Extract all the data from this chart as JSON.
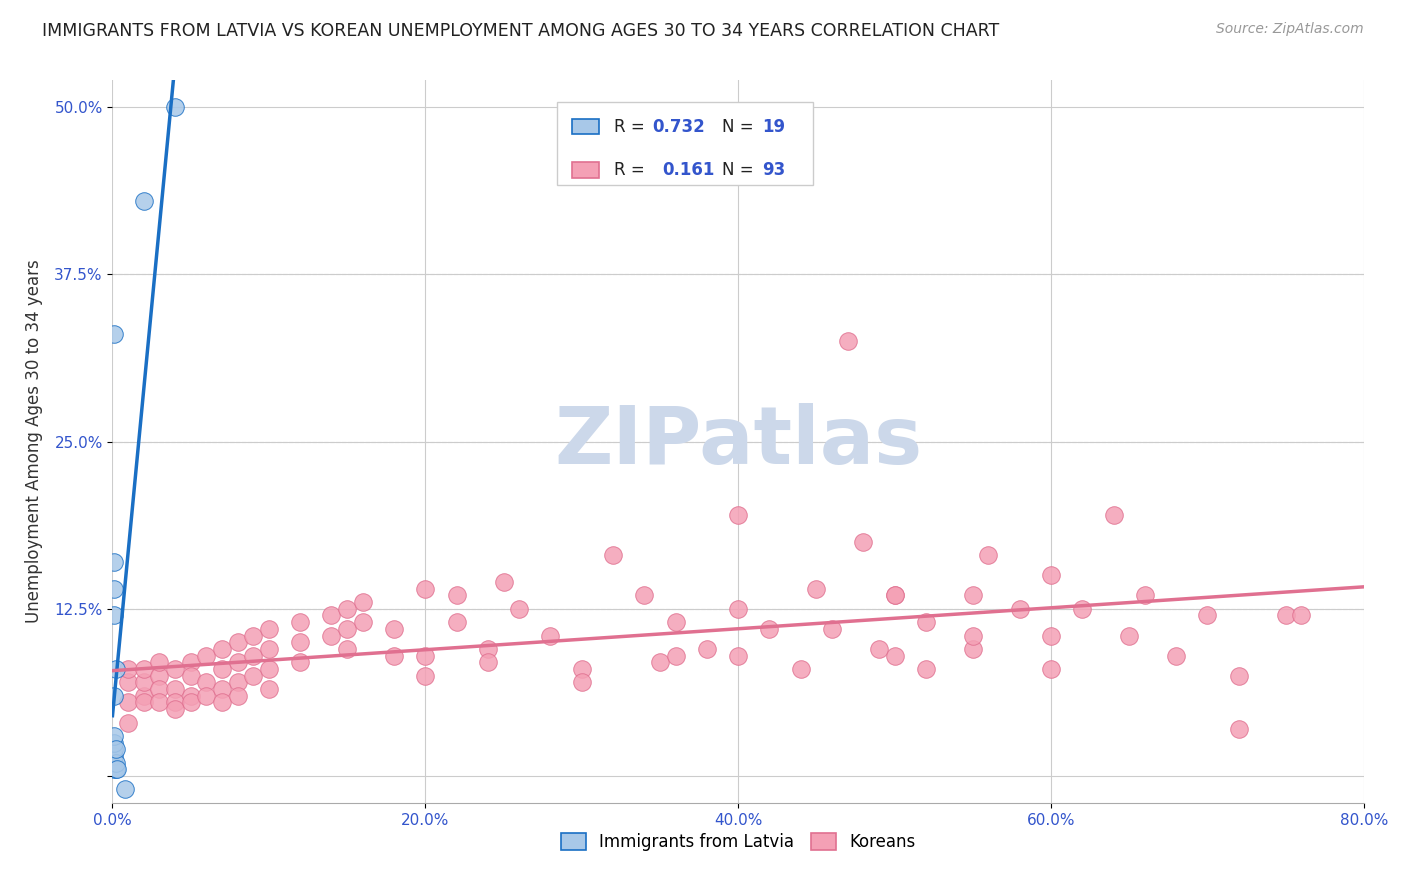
{
  "title": "IMMIGRANTS FROM LATVIA VS KOREAN UNEMPLOYMENT AMONG AGES 30 TO 34 YEARS CORRELATION CHART",
  "source": "Source: ZipAtlas.com",
  "ylabel": "Unemployment Among Ages 30 to 34 years",
  "xlim": [
    0,
    0.8
  ],
  "ylim": [
    -0.02,
    0.52
  ],
  "xtick_vals": [
    0.0,
    0.2,
    0.4,
    0.6,
    0.8
  ],
  "xtick_labels": [
    "0.0%",
    "20.0%",
    "40.0%",
    "60.0%",
    "80.0%"
  ],
  "ytick_vals": [
    0.0,
    0.125,
    0.25,
    0.375,
    0.5
  ],
  "ytick_labels": [
    "",
    "12.5%",
    "25.0%",
    "37.5%",
    "50.0%"
  ],
  "color_latvia": "#a8c8e8",
  "color_korean": "#f4a0b5",
  "color_line_latvia": "#1a6fc4",
  "color_line_korean": "#e07090",
  "color_tick_label": "#3355cc",
  "background_color": "#ffffff",
  "watermark_color": "#ccd8ea",
  "latvia_points": [
    [
      0.001,
      0.005
    ],
    [
      0.001,
      0.01
    ],
    [
      0.001,
      0.015
    ],
    [
      0.001,
      0.02
    ],
    [
      0.001,
      0.025
    ],
    [
      0.001,
      0.03
    ],
    [
      0.002,
      0.005
    ],
    [
      0.002,
      0.01
    ],
    [
      0.002,
      0.02
    ],
    [
      0.003,
      0.005
    ],
    [
      0.008,
      -0.01
    ],
    [
      0.001,
      0.12
    ],
    [
      0.001,
      0.33
    ],
    [
      0.02,
      0.43
    ],
    [
      0.04,
      0.5
    ],
    [
      0.001,
      0.14
    ],
    [
      0.001,
      0.16
    ],
    [
      0.002,
      0.08
    ],
    [
      0.001,
      0.06
    ]
  ],
  "korean_points": [
    [
      0.01,
      0.055
    ],
    [
      0.01,
      0.07
    ],
    [
      0.01,
      0.08
    ],
    [
      0.01,
      0.04
    ],
    [
      0.02,
      0.06
    ],
    [
      0.02,
      0.07
    ],
    [
      0.02,
      0.08
    ],
    [
      0.02,
      0.055
    ],
    [
      0.03,
      0.075
    ],
    [
      0.03,
      0.085
    ],
    [
      0.03,
      0.065
    ],
    [
      0.03,
      0.055
    ],
    [
      0.04,
      0.08
    ],
    [
      0.04,
      0.065
    ],
    [
      0.04,
      0.055
    ],
    [
      0.04,
      0.05
    ],
    [
      0.05,
      0.085
    ],
    [
      0.05,
      0.075
    ],
    [
      0.05,
      0.06
    ],
    [
      0.05,
      0.055
    ],
    [
      0.06,
      0.09
    ],
    [
      0.06,
      0.07
    ],
    [
      0.06,
      0.06
    ],
    [
      0.07,
      0.095
    ],
    [
      0.07,
      0.08
    ],
    [
      0.07,
      0.065
    ],
    [
      0.07,
      0.055
    ],
    [
      0.08,
      0.1
    ],
    [
      0.08,
      0.085
    ],
    [
      0.08,
      0.07
    ],
    [
      0.08,
      0.06
    ],
    [
      0.09,
      0.105
    ],
    [
      0.09,
      0.09
    ],
    [
      0.09,
      0.075
    ],
    [
      0.1,
      0.11
    ],
    [
      0.1,
      0.095
    ],
    [
      0.1,
      0.08
    ],
    [
      0.1,
      0.065
    ],
    [
      0.12,
      0.115
    ],
    [
      0.12,
      0.1
    ],
    [
      0.12,
      0.085
    ],
    [
      0.14,
      0.12
    ],
    [
      0.14,
      0.105
    ],
    [
      0.15,
      0.125
    ],
    [
      0.15,
      0.11
    ],
    [
      0.15,
      0.095
    ],
    [
      0.16,
      0.13
    ],
    [
      0.16,
      0.115
    ],
    [
      0.18,
      0.09
    ],
    [
      0.18,
      0.11
    ],
    [
      0.2,
      0.09
    ],
    [
      0.2,
      0.075
    ],
    [
      0.22,
      0.135
    ],
    [
      0.22,
      0.115
    ],
    [
      0.24,
      0.095
    ],
    [
      0.24,
      0.085
    ],
    [
      0.25,
      0.145
    ],
    [
      0.26,
      0.125
    ],
    [
      0.28,
      0.105
    ],
    [
      0.3,
      0.08
    ],
    [
      0.3,
      0.07
    ],
    [
      0.32,
      0.165
    ],
    [
      0.34,
      0.135
    ],
    [
      0.35,
      0.085
    ],
    [
      0.36,
      0.115
    ],
    [
      0.38,
      0.095
    ],
    [
      0.4,
      0.195
    ],
    [
      0.4,
      0.125
    ],
    [
      0.4,
      0.09
    ],
    [
      0.42,
      0.11
    ],
    [
      0.44,
      0.08
    ],
    [
      0.45,
      0.14
    ],
    [
      0.46,
      0.11
    ],
    [
      0.47,
      0.325
    ],
    [
      0.48,
      0.175
    ],
    [
      0.49,
      0.095
    ],
    [
      0.5,
      0.135
    ],
    [
      0.5,
      0.09
    ],
    [
      0.52,
      0.115
    ],
    [
      0.52,
      0.08
    ],
    [
      0.55,
      0.135
    ],
    [
      0.55,
      0.095
    ],
    [
      0.56,
      0.165
    ],
    [
      0.58,
      0.125
    ],
    [
      0.6,
      0.15
    ],
    [
      0.6,
      0.105
    ],
    [
      0.6,
      0.08
    ],
    [
      0.62,
      0.125
    ],
    [
      0.64,
      0.195
    ],
    [
      0.65,
      0.105
    ],
    [
      0.66,
      0.135
    ],
    [
      0.68,
      0.09
    ],
    [
      0.7,
      0.12
    ],
    [
      0.72,
      0.075
    ],
    [
      0.72,
      0.035
    ],
    [
      0.75,
      0.12
    ],
    [
      0.76,
      0.12
    ],
    [
      0.36,
      0.09
    ],
    [
      0.2,
      0.14
    ],
    [
      0.5,
      0.135
    ],
    [
      0.55,
      0.105
    ]
  ]
}
